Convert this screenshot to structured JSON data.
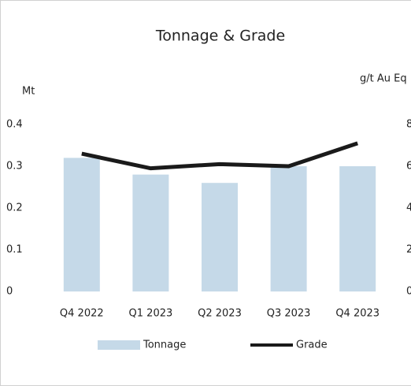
{
  "chart_data": {
    "type": "bar",
    "title": "Tonnage & Grade",
    "y_label": "Mt",
    "y2_label": "g/t Au Eq",
    "categories": [
      "Q4 2022",
      "Q1 2023",
      "Q2 2023",
      "Q3 2023",
      "Q4 2023"
    ],
    "series": [
      {
        "name": "Tonnage",
        "type": "bar",
        "color": "#c5d9e8",
        "values": [
          0.32,
          0.28,
          0.26,
          0.3,
          0.3
        ]
      },
      {
        "name": "Grade",
        "type": "line",
        "axis": "y2",
        "color": "#1a1a1a",
        "values": [
          6.6,
          5.9,
          6.1,
          6.0,
          7.1
        ]
      }
    ],
    "ylim": [
      0,
      0.4
    ],
    "yticks": [
      0,
      0.1,
      0.2,
      0.3,
      0.4
    ],
    "y2lim": [
      0,
      8
    ],
    "y2ticks": [
      0,
      2,
      4,
      6,
      8
    ],
    "legend": "bottom"
  }
}
